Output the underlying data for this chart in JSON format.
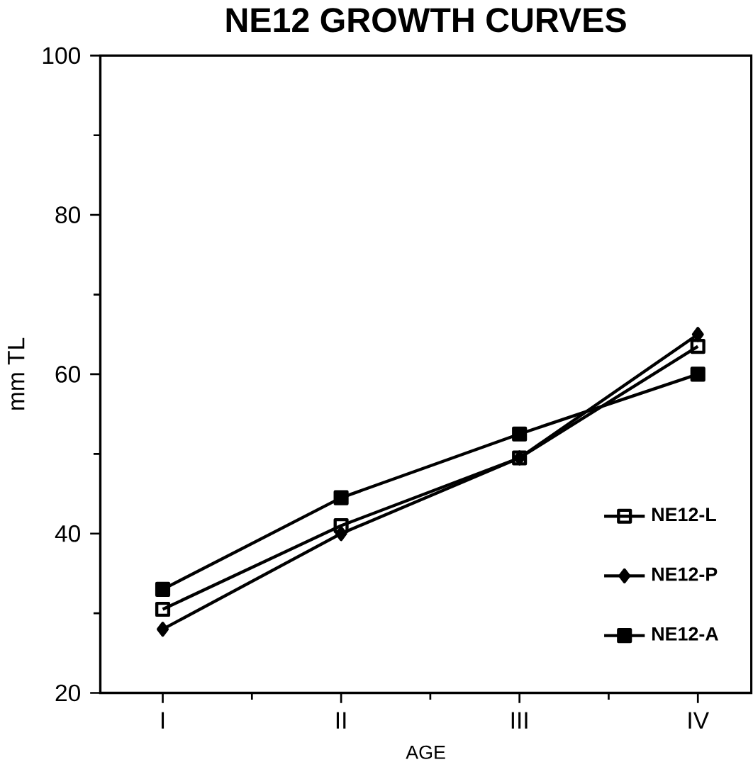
{
  "chart_data": {
    "type": "line",
    "title": "NE12 GROWTH CURVES",
    "xlabel": "AGE",
    "ylabel": "mm TL",
    "categories": [
      "I",
      "II",
      "III",
      "IV"
    ],
    "series": [
      {
        "name": "NE12-L",
        "color": "#000000",
        "marker": "square",
        "values": [
          30.5,
          41,
          49.5,
          63.5
        ]
      },
      {
        "name": "NE12-P",
        "color": "#000000",
        "marker": "diamond",
        "values": [
          28,
          40,
          49.5,
          65
        ]
      },
      {
        "name": "NE12-A",
        "color": "#000000",
        "marker": "square*",
        "values": [
          33,
          44.5,
          52.5,
          60
        ]
      }
    ],
    "ylim": [
      20,
      100
    ],
    "yticks": [
      20,
      40,
      60,
      80,
      100
    ],
    "legend": "bottom right",
    "grid": false
  }
}
